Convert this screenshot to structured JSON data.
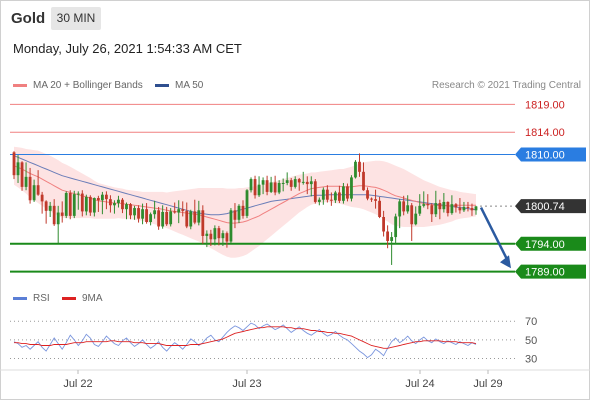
{
  "header": {
    "instrument": "Gold",
    "interval": "30 MIN"
  },
  "datetime": "Monday, July 26, 2021 1:54:33 AM CET",
  "legend": [
    {
      "label": "MA 20 + Bollinger Bands",
      "color": "#f08080"
    },
    {
      "label": "MA 50",
      "color": "#2f4f8f"
    }
  ],
  "credit": "Research © 2021 Trading Central",
  "rsi_legend": [
    {
      "label": "RSI",
      "color": "#5b7fd6"
    },
    {
      "label": "9MA",
      "color": "#dd2222"
    }
  ],
  "colors": {
    "up": "#2e8b2e",
    "down": "#c0392b",
    "support": "#1a8a1a",
    "resistance": "#f08080",
    "pivot": "#2a7de1",
    "arrow": "#2b5aa0"
  },
  "chart_data": {
    "type": "candlestick",
    "x_tick_labels": [
      "Jul 22",
      "Jul 23",
      "Jul 24",
      "Jul 29"
    ],
    "ylim": [
      1787.5,
      1820.5
    ],
    "price_levels": [
      {
        "value": 1819.0,
        "label": "1819.00",
        "kind": "resistance"
      },
      {
        "value": 1814.0,
        "label": "1814.00",
        "kind": "resistance"
      },
      {
        "value": 1810.0,
        "label": "1810.00",
        "kind": "pivot"
      },
      {
        "value": 1800.74,
        "label": "1800.74",
        "kind": "current"
      },
      {
        "value": 1794.0,
        "label": "1794.00",
        "kind": "support"
      },
      {
        "value": 1789.0,
        "label": "1789.00",
        "kind": "support"
      }
    ],
    "arrow": {
      "from": 1800.5,
      "to": 1789.6
    },
    "candles": [
      [
        1810.4,
        1810.6,
        1805.6,
        1806.3
      ],
      [
        1806.3,
        1809.9,
        1804.9,
        1808.6
      ],
      [
        1808.6,
        1808.8,
        1803.5,
        1804.2
      ],
      [
        1804.2,
        1808.6,
        1803.6,
        1806.0
      ],
      [
        1806.0,
        1807.6,
        1801.2,
        1801.8
      ],
      [
        1801.8,
        1805.5,
        1801.5,
        1804.5
      ],
      [
        1804.5,
        1807.2,
        1802.6,
        1802.8
      ],
      [
        1802.8,
        1803.3,
        1799.4,
        1801.6
      ],
      [
        1801.6,
        1801.8,
        1797.6,
        1799.9
      ],
      [
        1799.9,
        1801.5,
        1798.8,
        1800.8
      ],
      [
        1800.8,
        1802.0,
        1797.2,
        1797.5
      ],
      [
        1797.5,
        1800.8,
        1794.1,
        1799.6
      ],
      [
        1799.6,
        1801.6,
        1797.8,
        1799.0
      ],
      [
        1799.0,
        1803.4,
        1798.6,
        1803.1
      ],
      [
        1803.1,
        1803.6,
        1798.4,
        1799.0
      ],
      [
        1799.0,
        1803.5,
        1798.6,
        1802.9
      ],
      [
        1802.9,
        1803.4,
        1800.1,
        1803.0
      ],
      [
        1803.0,
        1803.6,
        1798.9,
        1799.8
      ],
      [
        1799.8,
        1802.8,
        1799.1,
        1802.4
      ],
      [
        1802.4,
        1802.7,
        1799.0,
        1799.6
      ],
      [
        1799.6,
        1802.3,
        1798.9,
        1802.2
      ],
      [
        1802.2,
        1802.6,
        1799.7,
        1801.8
      ],
      [
        1801.8,
        1803.3,
        1799.3,
        1802.8
      ],
      [
        1802.8,
        1803.4,
        1800.2,
        1802.0
      ],
      [
        1802.0,
        1802.7,
        1799.6,
        1800.9
      ],
      [
        1800.9,
        1801.8,
        1799.4,
        1801.3
      ],
      [
        1801.3,
        1802.6,
        1800.5,
        1801.9
      ],
      [
        1801.9,
        1802.2,
        1799.5,
        1800.2
      ],
      [
        1800.2,
        1801.4,
        1798.4,
        1801.1
      ],
      [
        1801.1,
        1801.3,
        1798.4,
        1799.1
      ],
      [
        1799.1,
        1800.8,
        1798.3,
        1800.4
      ],
      [
        1800.4,
        1800.9,
        1797.8,
        1798.5
      ],
      [
        1798.5,
        1801.2,
        1797.5,
        1800.2
      ],
      [
        1800.2,
        1801.3,
        1797.6,
        1797.9
      ],
      [
        1797.9,
        1799.6,
        1797.3,
        1799.3
      ],
      [
        1799.3,
        1801.7,
        1798.5,
        1800.0
      ],
      [
        1800.0,
        1800.6,
        1796.5,
        1797.1
      ],
      [
        1797.1,
        1800.9,
        1796.7,
        1799.7
      ],
      [
        1799.7,
        1800.6,
        1797.2,
        1797.5
      ],
      [
        1797.5,
        1800.4,
        1797.1,
        1799.8
      ],
      [
        1799.8,
        1801.4,
        1799.4,
        1799.6
      ],
      [
        1799.6,
        1801.8,
        1797.7,
        1800.2
      ],
      [
        1800.2,
        1801.6,
        1798.9,
        1799.9
      ],
      [
        1799.9,
        1801.4,
        1796.8,
        1797.1
      ],
      [
        1797.1,
        1800.1,
        1796.6,
        1799.8
      ],
      [
        1799.8,
        1801.9,
        1797.5,
        1797.8
      ],
      [
        1797.8,
        1801.7,
        1797.3,
        1800.0
      ],
      [
        1800.0,
        1800.9,
        1794.0,
        1795.4
      ],
      [
        1795.4,
        1796.4,
        1793.4,
        1795.8
      ],
      [
        1795.8,
        1796.5,
        1793.6,
        1794.8
      ],
      [
        1794.8,
        1797.3,
        1793.7,
        1796.8
      ],
      [
        1796.8,
        1797.2,
        1793.7,
        1795.0
      ],
      [
        1795.0,
        1796.4,
        1793.6,
        1795.9
      ],
      [
        1795.9,
        1796.2,
        1793.3,
        1794.4
      ],
      [
        1794.4,
        1800.4,
        1794.1,
        1800.0
      ],
      [
        1800.0,
        1801.3,
        1796.8,
        1798.3
      ],
      [
        1798.3,
        1801.1,
        1797.7,
        1800.8
      ],
      [
        1800.8,
        1801.8,
        1798.5,
        1799.0
      ],
      [
        1799.0,
        1803.8,
        1798.6,
        1803.6
      ],
      [
        1803.6,
        1805.9,
        1803.2,
        1805.6
      ],
      [
        1805.6,
        1806.2,
        1802.1,
        1802.7
      ],
      [
        1802.7,
        1806.1,
        1802.4,
        1804.6
      ],
      [
        1804.6,
        1805.9,
        1802.9,
        1805.4
      ],
      [
        1805.4,
        1806.2,
        1802.7,
        1803.3
      ],
      [
        1803.3,
        1806.0,
        1803.1,
        1805.0
      ],
      [
        1805.0,
        1806.2,
        1802.7,
        1803.2
      ],
      [
        1803.2,
        1805.4,
        1802.9,
        1804.9
      ],
      [
        1804.9,
        1805.7,
        1803.4,
        1804.9
      ],
      [
        1804.9,
        1806.8,
        1804.5,
        1805.4
      ],
      [
        1805.4,
        1805.8,
        1803.5,
        1804.2
      ],
      [
        1804.2,
        1806.1,
        1803.9,
        1805.6
      ],
      [
        1805.6,
        1805.8,
        1803.5,
        1805.0
      ],
      [
        1805.0,
        1806.9,
        1804.6,
        1805.1
      ],
      [
        1805.1,
        1806.1,
        1802.9,
        1804.7
      ],
      [
        1804.7,
        1806.1,
        1802.5,
        1805.2
      ],
      [
        1805.2,
        1805.6,
        1801.2,
        1801.5
      ],
      [
        1801.5,
        1802.3,
        1800.9,
        1801.9
      ],
      [
        1801.9,
        1804.1,
        1801.0,
        1803.7
      ],
      [
        1803.7,
        1804.5,
        1801.4,
        1801.9
      ],
      [
        1801.9,
        1803.2,
        1800.8,
        1801.8
      ],
      [
        1801.8,
        1803.5,
        1801.3,
        1803.2
      ],
      [
        1803.2,
        1804.4,
        1801.3,
        1801.7
      ],
      [
        1801.7,
        1804.9,
        1801.2,
        1804.3
      ],
      [
        1804.3,
        1804.8,
        1801.6,
        1802.1
      ],
      [
        1802.1,
        1806.3,
        1801.6,
        1805.9
      ],
      [
        1805.9,
        1809.0,
        1805.7,
        1808.7
      ],
      [
        1808.7,
        1810.2,
        1806.0,
        1806.9
      ],
      [
        1806.9,
        1808.6,
        1803.5,
        1803.6
      ],
      [
        1803.6,
        1804.1,
        1801.8,
        1802.1
      ],
      [
        1802.1,
        1802.3,
        1801.5,
        1802.0
      ],
      [
        1802.0,
        1803.7,
        1800.3,
        1801.7
      ],
      [
        1801.7,
        1802.4,
        1798.6,
        1798.8
      ],
      [
        1798.8,
        1799.9,
        1795.3,
        1796.2
      ],
      [
        1796.2,
        1797.3,
        1793.2,
        1794.5
      ],
      [
        1794.5,
        1796.1,
        1790.2,
        1795.2
      ],
      [
        1795.2,
        1799.4,
        1793.9,
        1798.9
      ],
      [
        1798.9,
        1802.0,
        1796.8,
        1801.6
      ],
      [
        1801.6,
        1802.6,
        1799.1,
        1799.8
      ],
      [
        1799.8,
        1802.7,
        1799.4,
        1800.9
      ],
      [
        1800.9,
        1801.3,
        1794.5,
        1797.5
      ],
      [
        1797.5,
        1800.7,
        1797.3,
        1799.4
      ],
      [
        1799.4,
        1802.9,
        1799.0,
        1800.8
      ],
      [
        1800.8,
        1803.4,
        1800.5,
        1801.1
      ],
      [
        1801.1,
        1802.9,
        1800.2,
        1800.9
      ],
      [
        1800.9,
        1801.3,
        1797.9,
        1799.3
      ],
      [
        1799.3,
        1803.5,
        1798.8,
        1801.3
      ],
      [
        1801.3,
        1801.9,
        1798.4,
        1800.2
      ],
      [
        1800.2,
        1803.1,
        1799.6,
        1801.5
      ],
      [
        1801.5,
        1801.6,
        1798.9,
        1799.5
      ],
      [
        1799.5,
        1802.7,
        1799.2,
        1801.1
      ],
      [
        1801.1,
        1801.3,
        1799.6,
        1800.5
      ],
      [
        1800.5,
        1802.2,
        1799.4,
        1800.0
      ],
      [
        1800.0,
        1801.5,
        1799.7,
        1800.6
      ],
      [
        1800.6,
        1801.5,
        1799.8,
        1800.4
      ],
      [
        1800.4,
        1801.2,
        1799.0,
        1800.0
      ],
      [
        1800.0,
        1800.8,
        1799.2,
        1800.7
      ]
    ],
    "ma20": [
      1808.0,
      1807.7,
      1807.4,
      1807.0,
      1806.6,
      1806.3,
      1806.0,
      1805.6,
      1805.2,
      1804.8,
      1804.4,
      1804.0,
      1803.6,
      1803.4,
      1803.2,
      1803.0,
      1802.8,
      1802.6,
      1802.4,
      1802.2,
      1801.9,
      1801.7,
      1801.6,
      1801.5,
      1801.4,
      1801.3,
      1801.3,
      1801.2,
      1801.1,
      1801.0,
      1800.9,
      1800.8,
      1800.7,
      1800.6,
      1800.5,
      1800.4,
      1800.3,
      1800.2,
      1800.0,
      1799.9,
      1799.8,
      1799.7,
      1799.6,
      1799.5,
      1799.4,
      1799.3,
      1799.2,
      1799.0,
      1798.8,
      1798.6,
      1798.4,
      1798.2,
      1798.0,
      1797.8,
      1797.7,
      1797.7,
      1797.8,
      1797.9,
      1798.1,
      1798.4,
      1798.7,
      1799.0,
      1799.4,
      1799.8,
      1800.2,
      1800.6,
      1801.0,
      1801.4,
      1801.8,
      1802.2,
      1802.6,
      1803.0,
      1803.3,
      1803.6,
      1803.9,
      1804.0,
      1804.1,
      1804.2,
      1804.3,
      1804.3,
      1804.3,
      1804.3,
      1804.2,
      1804.2,
      1804.2,
      1804.3,
      1804.4,
      1804.4,
      1804.3,
      1804.2,
      1804.1,
      1803.9,
      1803.6,
      1803.3,
      1802.9,
      1802.6,
      1802.4,
      1802.2,
      1802.0,
      1801.8,
      1801.6,
      1801.4,
      1801.2,
      1801.1,
      1801.0,
      1800.9,
      1800.8,
      1800.8,
      1800.8,
      1800.8,
      1800.9,
      1800.9,
      1800.9,
      1800.9,
      1800.9,
      1800.9
    ],
    "ma50": [
      1809.8,
      1809.5,
      1809.2,
      1808.9,
      1808.6,
      1808.3,
      1808.0,
      1807.7,
      1807.4,
      1807.1,
      1806.8,
      1806.5,
      1806.2,
      1806.0,
      1805.8,
      1805.6,
      1805.4,
      1805.2,
      1805.0,
      1804.8,
      1804.6,
      1804.4,
      1804.2,
      1804.0,
      1803.8,
      1803.6,
      1803.4,
      1803.2,
      1803.0,
      1802.8,
      1802.6,
      1802.4,
      1802.2,
      1802.0,
      1801.8,
      1801.6,
      1801.4,
      1801.2,
      1801.0,
      1800.8,
      1800.6,
      1800.4,
      1800.2,
      1800.0,
      1799.8,
      1799.6,
      1799.5,
      1799.4,
      1799.3,
      1799.2,
      1799.2,
      1799.2,
      1799.3,
      1799.4,
      1799.6,
      1799.8,
      1800.0,
      1800.2,
      1800.4,
      1800.6,
      1800.8,
      1801.0,
      1801.2,
      1801.4,
      1801.6,
      1801.7,
      1801.8,
      1801.9,
      1802.0,
      1802.1,
      1802.2,
      1802.3,
      1802.4,
      1802.5,
      1802.6,
      1802.7,
      1802.7,
      1802.7,
      1802.8,
      1802.8,
      1802.8,
      1802.8,
      1802.8,
      1802.8,
      1802.8,
      1802.8,
      1802.8,
      1802.8,
      1802.8,
      1802.7,
      1802.6,
      1802.5,
      1802.4,
      1802.3,
      1802.2,
      1802.1,
      1802.0,
      1801.9,
      1801.8,
      1801.7,
      1801.6,
      1801.5,
      1801.4,
      1801.3,
      1801.2,
      1801.1,
      1801.0,
      1800.9,
      1800.8,
      1800.7,
      1800.6,
      1800.5,
      1800.4,
      1800.3,
      1800.2,
      1800.1
    ],
    "bb_width": [
      3.4,
      3.6,
      3.8,
      4.0,
      4.3,
      4.5,
      4.7,
      4.8,
      4.9,
      5.0,
      5.0,
      5.0,
      4.9,
      4.8,
      4.6,
      4.4,
      4.2,
      4.0,
      3.8,
      3.6,
      3.4,
      3.2,
      3.1,
      3.0,
      2.9,
      2.8,
      2.7,
      2.7,
      2.6,
      2.6,
      2.6,
      2.6,
      2.6,
      2.7,
      2.8,
      2.9,
      3.0,
      3.1,
      3.2,
      3.4,
      3.6,
      3.8,
      4.0,
      4.2,
      4.4,
      4.6,
      4.8,
      5.0,
      5.2,
      5.4,
      5.6,
      5.8,
      6.0,
      6.1,
      6.2,
      6.2,
      6.2,
      6.1,
      6.0,
      5.8,
      5.6,
      5.4,
      5.2,
      5.0,
      4.8,
      4.6,
      4.4,
      4.2,
      4.0,
      3.8,
      3.6,
      3.4,
      3.2,
      3.0,
      2.9,
      2.8,
      2.8,
      2.8,
      2.8,
      2.9,
      3.0,
      3.1,
      3.2,
      3.4,
      3.6,
      3.8,
      4.0,
      4.2,
      4.4,
      4.6,
      4.8,
      5.0,
      5.2,
      5.3,
      5.4,
      5.4,
      5.3,
      5.2,
      5.0,
      4.8,
      4.6,
      4.4,
      4.2,
      4.0,
      3.8,
      3.6,
      3.4,
      3.2,
      3.0,
      2.8,
      2.6,
      2.4,
      2.3,
      2.2,
      2.1,
      2.0
    ],
    "rsi": {
      "ticks": [
        70,
        50,
        30
      ],
      "ylim": [
        22,
        82
      ],
      "rsi": [
        48,
        46,
        42,
        44,
        40,
        44,
        48,
        42,
        38,
        45,
        52,
        46,
        40,
        47,
        55,
        50,
        44,
        49,
        56,
        52,
        45,
        43,
        48,
        54,
        50,
        46,
        44,
        49,
        52,
        47,
        43,
        46,
        50,
        45,
        41,
        44,
        48,
        42,
        38,
        43,
        47,
        44,
        40,
        45,
        51,
        48,
        44,
        47,
        52,
        55,
        50,
        48,
        53,
        58,
        62,
        65,
        63,
        60,
        64,
        68,
        66,
        62,
        65,
        67,
        64,
        61,
        63,
        66,
        62,
        58,
        61,
        64,
        60,
        57,
        55,
        58,
        61,
        57,
        54,
        56,
        59,
        55,
        52,
        50,
        46,
        42,
        38,
        35,
        31,
        34,
        40,
        37,
        33,
        41,
        48,
        52,
        47,
        50,
        54,
        49,
        46,
        50,
        53,
        49,
        47,
        51,
        48,
        46,
        49,
        47,
        45,
        48,
        46,
        44,
        47,
        45
      ],
      "ma9": [
        47,
        47,
        46,
        46,
        45,
        45,
        45,
        44,
        44,
        44,
        45,
        45,
        45,
        45,
        46,
        47,
        47,
        47,
        48,
        48,
        48,
        48,
        48,
        48,
        49,
        49,
        48,
        48,
        48,
        48,
        47,
        47,
        47,
        46,
        46,
        46,
        46,
        45,
        44,
        44,
        44,
        44,
        44,
        44,
        45,
        45,
        45,
        46,
        47,
        48,
        49,
        50,
        51,
        53,
        55,
        57,
        58,
        59,
        60,
        61,
        62,
        63,
        63,
        64,
        64,
        64,
        64,
        64,
        63,
        63,
        62,
        62,
        62,
        61,
        60,
        60,
        59,
        59,
        58,
        58,
        57,
        57,
        56,
        55,
        54,
        52,
        50,
        48,
        46,
        44,
        43,
        42,
        41,
        41,
        42,
        43,
        44,
        45,
        46,
        47,
        48,
        48,
        49,
        49,
        49,
        49,
        49,
        48,
        48,
        48,
        48,
        47,
        47,
        47,
        47,
        46
      ]
    }
  }
}
